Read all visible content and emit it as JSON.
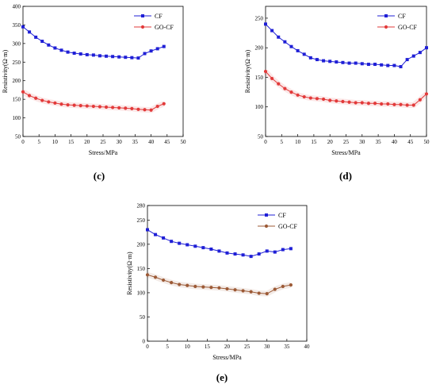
{
  "chart_data": [
    {
      "type": "line",
      "caption": "(c)",
      "xlabel": "Stress/MPa",
      "ylabel": "Resistivity(Ω·m)",
      "xlim": [
        0,
        50
      ],
      "ylim": [
        50,
        400
      ],
      "xticks": [
        0,
        5,
        10,
        15,
        20,
        25,
        30,
        35,
        40,
        45,
        50
      ],
      "yticks": [
        50,
        100,
        150,
        200,
        250,
        300,
        350,
        400
      ],
      "legend_position": "top-right",
      "series": [
        {
          "name": "CF",
          "color": "#1f1fd6",
          "marker": "square",
          "x": [
            0,
            2,
            4,
            6,
            8,
            10,
            12,
            14,
            16,
            18,
            20,
            22,
            24,
            26,
            28,
            30,
            32,
            34,
            36,
            38,
            40,
            42,
            44
          ],
          "y": [
            345,
            331,
            317,
            306,
            296,
            288,
            282,
            277,
            274,
            272,
            270,
            269,
            267,
            266,
            265,
            264,
            263,
            262,
            261,
            273,
            280,
            286,
            292
          ]
        },
        {
          "name": "GO-CF",
          "color": "#e23a3a",
          "marker": "circle",
          "x": [
            0,
            2,
            4,
            6,
            8,
            10,
            12,
            14,
            16,
            18,
            20,
            22,
            24,
            26,
            28,
            30,
            32,
            34,
            36,
            38,
            40,
            42,
            44
          ],
          "y": [
            170,
            160,
            153,
            147,
            143,
            140,
            137,
            135,
            134,
            133,
            132,
            131,
            130,
            129,
            128,
            127,
            126,
            125,
            123,
            122,
            121,
            131,
            138
          ]
        }
      ]
    },
    {
      "type": "line",
      "caption": "(d)",
      "xlabel": "Stress/MPa",
      "ylabel": "Resistivity(Ω·m)",
      "xlim": [
        0,
        50
      ],
      "ylim": [
        50,
        270
      ],
      "xticks": [
        0,
        5,
        10,
        15,
        20,
        25,
        30,
        35,
        40,
        45,
        50
      ],
      "yticks": [
        50,
        100,
        150,
        200,
        250
      ],
      "legend_position": "top-right",
      "series": [
        {
          "name": "CF",
          "color": "#1f1fd6",
          "marker": "square",
          "x": [
            0,
            2,
            4,
            6,
            8,
            10,
            12,
            14,
            16,
            18,
            20,
            22,
            24,
            26,
            28,
            30,
            32,
            34,
            36,
            38,
            40,
            42,
            44,
            46,
            48,
            50
          ],
          "y": [
            240,
            229,
            218,
            210,
            202,
            195,
            189,
            183,
            180,
            178,
            177,
            176,
            175,
            174,
            174,
            173,
            172,
            172,
            171,
            170,
            170,
            168,
            180,
            186,
            192,
            200
          ]
        },
        {
          "name": "GO-CF",
          "color": "#e23a3a",
          "marker": "circle",
          "x": [
            0,
            2,
            4,
            6,
            8,
            10,
            12,
            14,
            16,
            18,
            20,
            22,
            24,
            26,
            28,
            30,
            32,
            34,
            36,
            38,
            40,
            42,
            44,
            46,
            48,
            50
          ],
          "y": [
            160,
            148,
            139,
            131,
            125,
            120,
            117,
            115,
            114,
            113,
            111,
            110,
            109,
            108,
            107,
            107,
            106,
            106,
            105,
            105,
            104,
            104,
            103,
            103,
            112,
            122
          ]
        }
      ]
    },
    {
      "type": "line",
      "caption": "(e)",
      "xlabel": "Stress/MPa",
      "ylabel": "Resistivity(Ω·m)",
      "xlim": [
        0,
        40
      ],
      "ylim": [
        0,
        280
      ],
      "xticks": [
        0,
        5,
        10,
        15,
        20,
        25,
        30,
        35,
        40
      ],
      "yticks": [
        0,
        50,
        100,
        150,
        200,
        250,
        280
      ],
      "legend_position": "top-right",
      "series": [
        {
          "name": "CF",
          "color": "#1f1fd6",
          "marker": "square",
          "x": [
            0,
            2,
            4,
            6,
            8,
            10,
            12,
            14,
            16,
            18,
            20,
            22,
            24,
            26,
            28,
            30,
            32,
            34,
            36
          ],
          "y": [
            230,
            220,
            213,
            206,
            202,
            199,
            196,
            193,
            190,
            186,
            182,
            180,
            178,
            175,
            180,
            186,
            184,
            189,
            191
          ]
        },
        {
          "name": "GO-CF",
          "color": "#9c5a36",
          "marker": "circle",
          "x": [
            0,
            2,
            4,
            6,
            8,
            10,
            12,
            14,
            16,
            18,
            20,
            22,
            24,
            26,
            28,
            30,
            32,
            34,
            36
          ],
          "y": [
            137,
            132,
            126,
            121,
            117,
            115,
            113,
            112,
            111,
            110,
            108,
            106,
            104,
            102,
            99,
            98,
            107,
            113,
            116
          ]
        }
      ]
    }
  ]
}
